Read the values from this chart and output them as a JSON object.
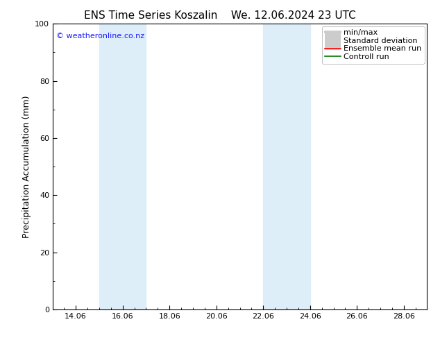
{
  "title_left": "ENS Time Series Koszalin",
  "title_right": "We. 12.06.2024 23 UTC",
  "ylabel": "Precipitation Accumulation (mm)",
  "ylim": [
    0,
    100
  ],
  "yticks": [
    0,
    20,
    40,
    60,
    80,
    100
  ],
  "xlim": [
    13.08,
    29.04
  ],
  "xtick_labels": [
    "14.06",
    "16.06",
    "18.06",
    "20.06",
    "22.06",
    "24.06",
    "26.06",
    "28.06"
  ],
  "xtick_positions": [
    14.06,
    16.06,
    18.06,
    20.06,
    22.06,
    24.06,
    26.06,
    28.06
  ],
  "shaded_bands": [
    {
      "x_start": 15.06,
      "x_end": 17.06
    },
    {
      "x_start": 22.06,
      "x_end": 24.06
    }
  ],
  "band_color": "#ddeef8",
  "watermark": "© weatheronline.co.nz",
  "watermark_color": "#1a1aff",
  "watermark_fontsize": 8,
  "bg_color": "#ffffff",
  "legend_items": [
    {
      "label": "min/max",
      "color": "#999999",
      "lw": 1.2
    },
    {
      "label": "Standard deviation",
      "color": "#cccccc",
      "lw": 5
    },
    {
      "label": "Ensemble mean run",
      "color": "#ff0000",
      "lw": 1.2
    },
    {
      "label": "Controll run",
      "color": "#007700",
      "lw": 1.2
    }
  ],
  "title_fontsize": 11,
  "ylabel_fontsize": 9,
  "tick_fontsize": 8,
  "legend_fontsize": 8
}
